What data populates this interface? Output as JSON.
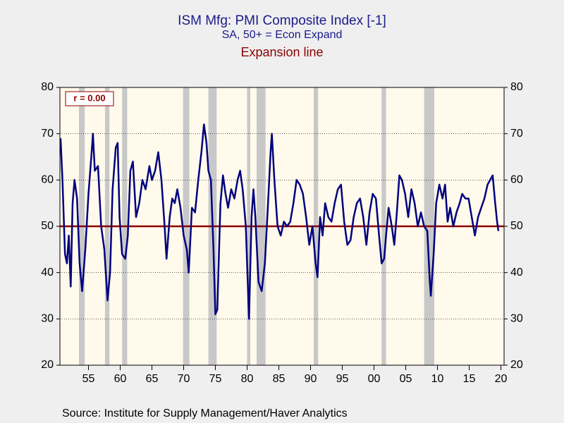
{
  "chart_data": {
    "type": "line",
    "title": "ISM Mfg: PMI Composite Index [-1]",
    "subtitle": "SA, 50+ = Econ Expand",
    "annotation": "r = 0.00",
    "source": "Source:  Institute for Supply Management/Haver Analytics",
    "reference_line": {
      "label": "Expansion line",
      "value": 50,
      "color": "#8b0000"
    },
    "shaded_regions": [
      [
        1953.5,
        1954.4
      ],
      [
        1957.6,
        1958.3
      ],
      [
        1960.3,
        1961.1
      ],
      [
        1969.9,
        1970.9
      ],
      [
        1973.9,
        1975.2
      ],
      [
        1980.0,
        1980.5
      ],
      [
        1981.5,
        1982.9
      ],
      [
        1990.5,
        1991.2
      ],
      [
        2001.2,
        2001.9
      ],
      [
        2007.9,
        2009.5
      ]
    ],
    "shade_color": "#c8c8c8",
    "xlim": [
      1950.5,
      2020.5
    ],
    "xticks": [
      {
        "value": 1955,
        "label": "55"
      },
      {
        "value": 1960,
        "label": "60"
      },
      {
        "value": 1965,
        "label": "65"
      },
      {
        "value": 1970,
        "label": "70"
      },
      {
        "value": 1975,
        "label": "75"
      },
      {
        "value": 1980,
        "label": "80"
      },
      {
        "value": 1985,
        "label": "85"
      },
      {
        "value": 1990,
        "label": "90"
      },
      {
        "value": 1995,
        "label": "95"
      },
      {
        "value": 2000,
        "label": "00"
      },
      {
        "value": 2005,
        "label": "05"
      },
      {
        "value": 2010,
        "label": "10"
      },
      {
        "value": 2015,
        "label": "15"
      },
      {
        "value": 2020,
        "label": "20"
      }
    ],
    "ylim": [
      20,
      80
    ],
    "yticks": [
      20,
      30,
      40,
      50,
      60,
      70,
      80
    ],
    "grid": true,
    "x": [
      1950.6,
      1950.9,
      1951.3,
      1951.6,
      1951.9,
      1952.2,
      1952.5,
      1952.8,
      1953.2,
      1953.6,
      1954.0,
      1954.5,
      1955.0,
      1955.5,
      1955.7,
      1956.0,
      1956.5,
      1957.0,
      1957.5,
      1958.0,
      1958.4,
      1958.8,
      1959.3,
      1959.6,
      1959.9,
      1960.3,
      1960.8,
      1961.2,
      1961.6,
      1962.0,
      1962.5,
      1963.0,
      1963.5,
      1964.0,
      1964.6,
      1965.0,
      1965.5,
      1966.0,
      1966.5,
      1967.0,
      1967.3,
      1967.8,
      1968.2,
      1968.6,
      1969.0,
      1969.5,
      1970.0,
      1970.5,
      1970.8,
      1971.3,
      1971.8,
      1972.3,
      1972.8,
      1973.2,
      1973.6,
      1973.9,
      1974.3,
      1974.7,
      1975.0,
      1975.3,
      1975.8,
      1976.2,
      1976.6,
      1977.0,
      1977.5,
      1978.0,
      1978.5,
      1978.9,
      1979.3,
      1979.8,
      1980.3,
      1980.7,
      1981.0,
      1981.3,
      1981.8,
      1982.3,
      1982.8,
      1983.3,
      1983.7,
      1983.9,
      1984.3,
      1984.8,
      1985.3,
      1985.8,
      1986.3,
      1986.8,
      1987.3,
      1987.8,
      1988.3,
      1988.8,
      1989.3,
      1989.8,
      1990.3,
      1990.8,
      1991.1,
      1991.5,
      1991.9,
      1992.3,
      1992.8,
      1993.3,
      1993.8,
      1994.3,
      1994.8,
      1995.3,
      1995.8,
      1996.3,
      1996.8,
      1997.3,
      1997.8,
      1998.3,
      1998.8,
      1999.3,
      1999.8,
      2000.3,
      2000.8,
      2001.2,
      2001.6,
      2001.9,
      2002.3,
      2002.8,
      2003.2,
      2003.6,
      2004.0,
      2004.4,
      2004.9,
      2005.4,
      2005.9,
      2006.4,
      2006.9,
      2007.4,
      2007.9,
      2008.4,
      2008.8,
      2008.95,
      2009.4,
      2009.8,
      2010.3,
      2010.8,
      2011.2,
      2011.6,
      2012.0,
      2012.5,
      2013.0,
      2013.5,
      2013.9,
      2014.4,
      2014.9,
      2015.4,
      2015.9,
      2016.4,
      2016.9,
      2017.4,
      2017.9,
      2018.3,
      2018.7,
      2019.1,
      2019.4,
      2019.6
    ],
    "series": [
      {
        "name": "ISM Mfg: PMI Composite Index [-1]",
        "color": "#00007f",
        "values": [
          69,
          60,
          44,
          42,
          48,
          37,
          55,
          60,
          56,
          42,
          36,
          45,
          57,
          66,
          70,
          62,
          63,
          50,
          45,
          34,
          40,
          58,
          67,
          68,
          52,
          44,
          43,
          48,
          62,
          64,
          52,
          55,
          60,
          58,
          63,
          60,
          62,
          66,
          60,
          50,
          43,
          52,
          56,
          55,
          58,
          54,
          48,
          45,
          40,
          54,
          53,
          60,
          66,
          72,
          68,
          62,
          60,
          45,
          31,
          32,
          55,
          61,
          57,
          54,
          58,
          56,
          60,
          62,
          58,
          50,
          30,
          52,
          58,
          52,
          38,
          36,
          42,
          55,
          66,
          70,
          60,
          50,
          48,
          51,
          50,
          51,
          55,
          60,
          59,
          57,
          52,
          46,
          50,
          42,
          39,
          52,
          48,
          55,
          52,
          51,
          55,
          58,
          59,
          51,
          46,
          47,
          52,
          55,
          56,
          52,
          46,
          53,
          57,
          56,
          48,
          42,
          43,
          48,
          54,
          50,
          46,
          53,
          61,
          60,
          57,
          52,
          58,
          55,
          50,
          53,
          50,
          49,
          38,
          35,
          44,
          55,
          59,
          56,
          59,
          51,
          54,
          50,
          53,
          55,
          57,
          56,
          56,
          52,
          48,
          52,
          54,
          56,
          59,
          60,
          61,
          55,
          51,
          49
        ]
      }
    ]
  }
}
